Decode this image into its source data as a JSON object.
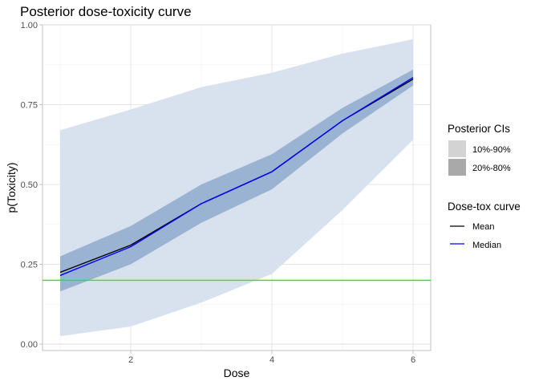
{
  "chart_data": {
    "type": "line",
    "title": "Posterior dose-toxicity curve",
    "xlabel": "Dose",
    "ylabel": "p(Toxicity)",
    "x": [
      1,
      2,
      3,
      4,
      5,
      6
    ],
    "xlim": [
      0.75,
      6.25
    ],
    "ylim": [
      -0.02,
      1.0
    ],
    "x_ticks": [
      2,
      4,
      6
    ],
    "y_ticks": [
      0.0,
      0.25,
      0.5,
      0.75,
      1.0
    ],
    "x_tick_labels": [
      "2",
      "4",
      "6"
    ],
    "y_tick_labels": [
      "0.00",
      "0.25",
      "0.50",
      "0.75",
      "1.00"
    ],
    "grid": true,
    "bands": [
      {
        "name": "10%-90%",
        "color": "#d8e2ee",
        "lower": [
          0.025,
          0.055,
          0.13,
          0.22,
          0.42,
          0.64
        ],
        "upper": [
          0.67,
          0.735,
          0.805,
          0.85,
          0.91,
          0.955
        ]
      },
      {
        "name": "20%-80%",
        "color": "#9ab3d3",
        "lower": [
          0.165,
          0.25,
          0.38,
          0.485,
          0.66,
          0.81
        ],
        "upper": [
          0.275,
          0.37,
          0.5,
          0.595,
          0.74,
          0.86
        ]
      }
    ],
    "series": [
      {
        "name": "Mean",
        "color": "#000000",
        "values": [
          0.225,
          0.31,
          0.44,
          0.54,
          0.7,
          0.83
        ]
      },
      {
        "name": "Median",
        "color": "#0000ff",
        "values": [
          0.215,
          0.305,
          0.44,
          0.54,
          0.7,
          0.835
        ]
      }
    ],
    "reference_line": {
      "y": 0.2,
      "color": "#00ff00"
    },
    "legend": {
      "position": "right",
      "ci_title": "Posterior CIs",
      "ci_items": [
        {
          "label": "10%-90%",
          "color": "#d3d3d3"
        },
        {
          "label": "20%-80%",
          "color": "#a9a9a9"
        }
      ],
      "line_title": "Dose-tox curve",
      "line_items": [
        {
          "label": "Mean",
          "color": "#000000"
        },
        {
          "label": "Median",
          "color": "#0000ff"
        }
      ]
    }
  }
}
